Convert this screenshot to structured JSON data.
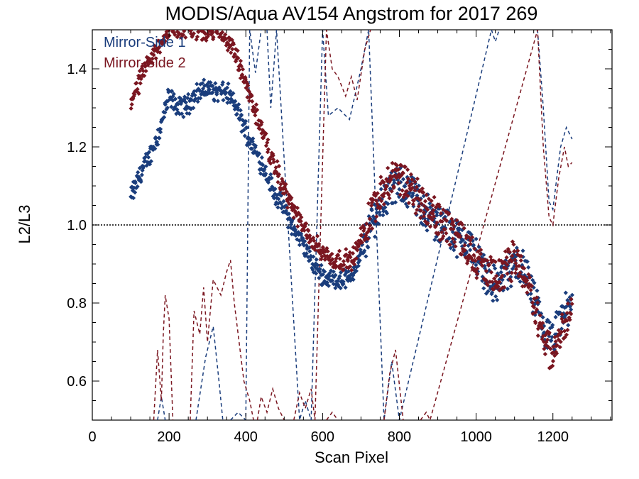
{
  "chart_data": {
    "type": "scatter",
    "title": "MODIS/Aqua AV154 Angstrom for 2017 269",
    "xlabel": "Scan Pixel",
    "ylabel": "L2/L3",
    "xlim": [
      0,
      1354
    ],
    "ylim": [
      0.5,
      1.5
    ],
    "x_ticks": [
      0,
      200,
      400,
      600,
      800,
      1000,
      1200
    ],
    "y_ticks": [
      0.6,
      0.8,
      1.0,
      1.2,
      1.4
    ],
    "x_minor_step": 50,
    "y_minor_step": 0.05,
    "reference_line": {
      "y": 1.0,
      "style": "dotted",
      "color": "#000000"
    },
    "legend_position": "top-left",
    "grid": false,
    "series": [
      {
        "name": "Mirror-Side 1",
        "color": "#1a3d7c",
        "points": [
          [
            100,
            1.07
          ],
          [
            125,
            1.13
          ],
          [
            150,
            1.18
          ],
          [
            175,
            1.24
          ],
          [
            200,
            1.33
          ],
          [
            225,
            1.3
          ],
          [
            250,
            1.31
          ],
          [
            275,
            1.34
          ],
          [
            300,
            1.35
          ],
          [
            325,
            1.34
          ],
          [
            350,
            1.34
          ],
          [
            375,
            1.3
          ],
          [
            400,
            1.24
          ],
          [
            425,
            1.19
          ],
          [
            450,
            1.14
          ],
          [
            475,
            1.08
          ],
          [
            500,
            1.04
          ],
          [
            525,
            0.99
          ],
          [
            550,
            0.95
          ],
          [
            575,
            0.9
          ],
          [
            600,
            0.87
          ],
          [
            625,
            0.86
          ],
          [
            650,
            0.86
          ],
          [
            675,
            0.87
          ],
          [
            700,
            0.92
          ],
          [
            725,
            1.0
          ],
          [
            750,
            1.05
          ],
          [
            775,
            1.09
          ],
          [
            800,
            1.1
          ],
          [
            825,
            1.09
          ],
          [
            850,
            1.06
          ],
          [
            875,
            1.03
          ],
          [
            900,
            1.0
          ],
          [
            925,
            1.0
          ],
          [
            950,
            0.97
          ],
          [
            975,
            0.96
          ],
          [
            1000,
            0.92
          ],
          [
            1025,
            0.88
          ],
          [
            1050,
            0.84
          ],
          [
            1075,
            0.87
          ],
          [
            1100,
            0.9
          ],
          [
            1125,
            0.89
          ],
          [
            1150,
            0.81
          ],
          [
            1175,
            0.73
          ],
          [
            1200,
            0.7
          ],
          [
            1225,
            0.77
          ],
          [
            1250,
            0.79
          ]
        ],
        "dashed_points": [
          [
            170,
            0.5
          ],
          [
            180,
            0.56
          ],
          [
            190,
            0.5
          ],
          [
            270,
            0.5
          ],
          [
            295,
            0.66
          ],
          [
            315,
            0.74
          ],
          [
            330,
            0.6
          ],
          [
            340,
            0.5
          ],
          [
            360,
            0.5
          ],
          [
            380,
            0.52
          ],
          [
            400,
            0.5
          ],
          [
            410,
            1.5
          ],
          [
            425,
            1.39
          ],
          [
            440,
            1.5
          ],
          [
            455,
            1.5
          ],
          [
            465,
            1.3
          ],
          [
            480,
            1.5
          ],
          [
            540,
            0.5
          ],
          [
            555,
            0.55
          ],
          [
            570,
            0.5
          ],
          [
            600,
            1.5
          ],
          [
            615,
            1.28
          ],
          [
            640,
            1.3
          ],
          [
            670,
            1.27
          ],
          [
            700,
            1.4
          ],
          [
            720,
            1.5
          ],
          [
            760,
            0.5
          ],
          [
            780,
            0.65
          ],
          [
            800,
            0.5
          ],
          [
            1040,
            1.5
          ],
          [
            1050,
            1.47
          ],
          [
            1060,
            1.5
          ],
          [
            1160,
            1.5
          ],
          [
            1175,
            1.3
          ],
          [
            1190,
            1.06
          ],
          [
            1200,
            1.04
          ],
          [
            1220,
            1.2
          ],
          [
            1235,
            1.25
          ],
          [
            1250,
            1.22
          ]
        ]
      },
      {
        "name": "Mirror-Side 2",
        "color": "#7a1620",
        "points": [
          [
            100,
            1.32
          ],
          [
            125,
            1.37
          ],
          [
            150,
            1.42
          ],
          [
            175,
            1.46
          ],
          [
            200,
            1.5
          ],
          [
            325,
            1.5
          ],
          [
            350,
            1.48
          ],
          [
            375,
            1.43
          ],
          [
            400,
            1.36
          ],
          [
            425,
            1.29
          ],
          [
            450,
            1.22
          ],
          [
            475,
            1.15
          ],
          [
            500,
            1.09
          ],
          [
            525,
            1.04
          ],
          [
            550,
            0.99
          ],
          [
            575,
            0.96
          ],
          [
            600,
            0.93
          ],
          [
            625,
            0.91
          ],
          [
            650,
            0.91
          ],
          [
            675,
            0.91
          ],
          [
            700,
            0.96
          ],
          [
            725,
            1.03
          ],
          [
            750,
            1.09
          ],
          [
            775,
            1.11
          ],
          [
            800,
            1.12
          ],
          [
            825,
            1.1
          ],
          [
            850,
            1.07
          ],
          [
            875,
            1.04
          ],
          [
            900,
            1.01
          ],
          [
            925,
            1.0
          ],
          [
            950,
            0.98
          ],
          [
            975,
            0.95
          ],
          [
            1000,
            0.91
          ],
          [
            1025,
            0.88
          ],
          [
            1050,
            0.86
          ],
          [
            1075,
            0.88
          ],
          [
            1100,
            0.92
          ],
          [
            1125,
            0.88
          ],
          [
            1150,
            0.8
          ],
          [
            1175,
            0.72
          ],
          [
            1200,
            0.66
          ],
          [
            1225,
            0.74
          ],
          [
            1250,
            0.77
          ]
        ],
        "dashed_points": [
          [
            160,
            0.5
          ],
          [
            170,
            0.68
          ],
          [
            180,
            0.55
          ],
          [
            185,
            0.72
          ],
          [
            190,
            0.82
          ],
          [
            200,
            0.76
          ],
          [
            210,
            0.5
          ],
          [
            255,
            0.5
          ],
          [
            265,
            0.78
          ],
          [
            280,
            0.72
          ],
          [
            290,
            0.84
          ],
          [
            300,
            0.7
          ],
          [
            315,
            0.86
          ],
          [
            335,
            0.82
          ],
          [
            350,
            0.88
          ],
          [
            360,
            0.91
          ],
          [
            370,
            0.8
          ],
          [
            385,
            0.68
          ],
          [
            395,
            0.6
          ],
          [
            410,
            0.55
          ],
          [
            420,
            0.5
          ],
          [
            430,
            0.5
          ],
          [
            440,
            0.56
          ],
          [
            455,
            0.52
          ],
          [
            470,
            0.58
          ],
          [
            485,
            0.53
          ],
          [
            500,
            0.5
          ],
          [
            525,
            0.5
          ],
          [
            540,
            0.57
          ],
          [
            555,
            0.53
          ],
          [
            570,
            0.58
          ],
          [
            580,
            0.5
          ],
          [
            610,
            1.5
          ],
          [
            625,
            1.4
          ],
          [
            640,
            1.38
          ],
          [
            660,
            1.33
          ],
          [
            675,
            1.38
          ],
          [
            690,
            1.32
          ],
          [
            710,
            1.45
          ],
          [
            725,
            1.5
          ],
          [
            610,
            0.5
          ],
          [
            625,
            0.52
          ],
          [
            640,
            0.5
          ],
          [
            760,
            0.5
          ],
          [
            775,
            0.62
          ],
          [
            790,
            0.68
          ],
          [
            810,
            0.5
          ],
          [
            855,
            0.5
          ],
          [
            870,
            0.52
          ],
          [
            880,
            0.5
          ],
          [
            1160,
            1.5
          ],
          [
            1175,
            1.2
          ],
          [
            1190,
            1.02
          ],
          [
            1200,
            1.0
          ],
          [
            1215,
            1.12
          ],
          [
            1230,
            1.2
          ],
          [
            1240,
            1.15
          ],
          [
            1250,
            1.16
          ]
        ]
      }
    ]
  }
}
